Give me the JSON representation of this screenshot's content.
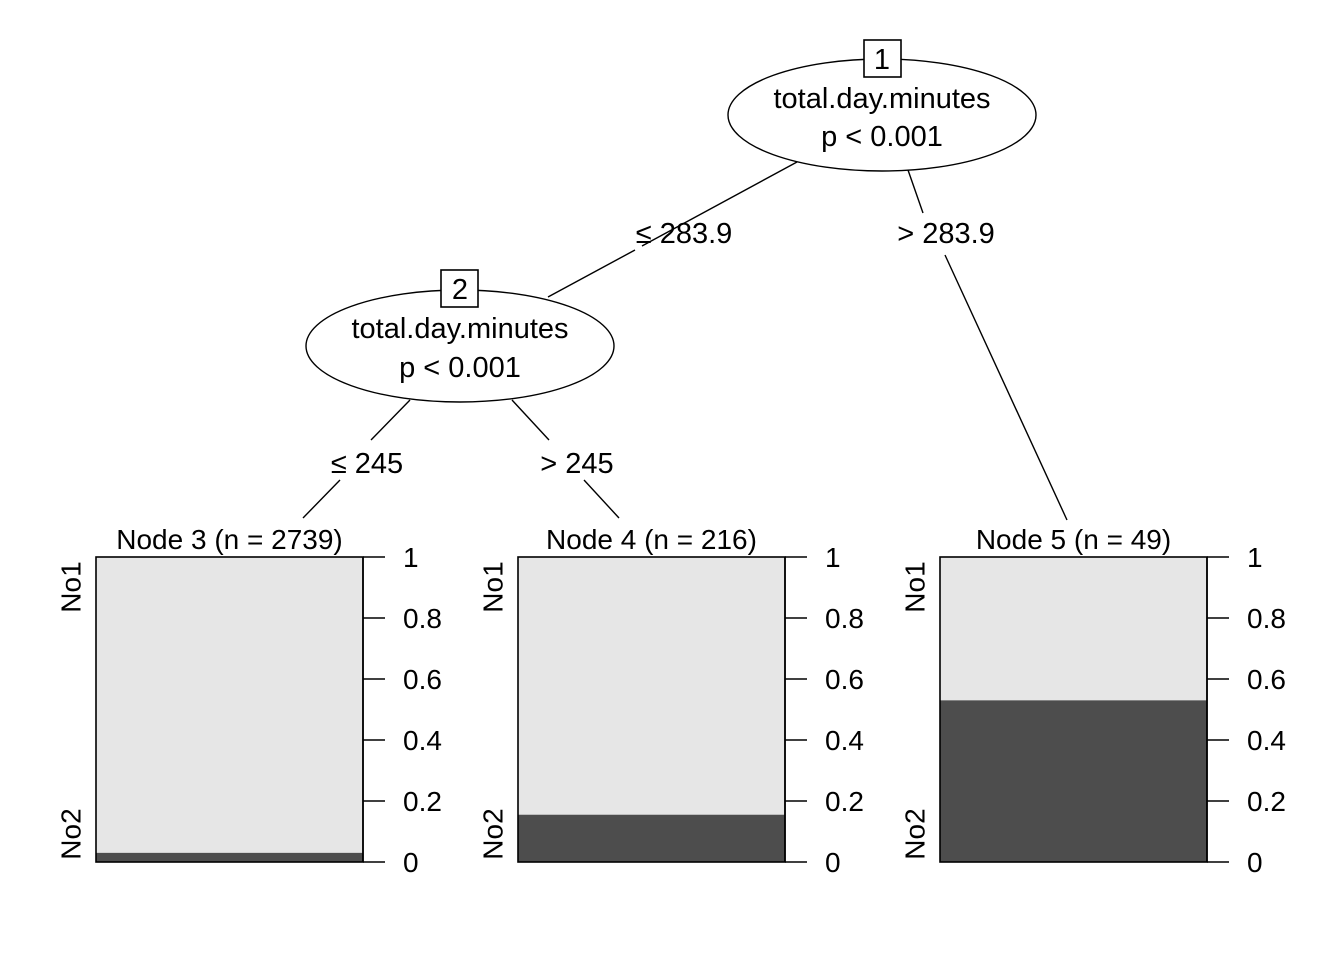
{
  "inner_nodes": [
    {
      "id": "1",
      "variable": "total.day.minutes",
      "pvalue": "p < 0.001"
    },
    {
      "id": "2",
      "variable": "total.day.minutes",
      "pvalue": "p < 0.001"
    }
  ],
  "edges": [
    {
      "from": "1",
      "to": "2",
      "label": "≤ 283.9"
    },
    {
      "from": "1",
      "to": "5",
      "label": "> 283.9"
    },
    {
      "from": "2",
      "to": "3",
      "label": "≤ 245"
    },
    {
      "from": "2",
      "to": "4",
      "label": "> 245"
    }
  ],
  "terminal_nodes": [
    {
      "id": "3",
      "title": "Node 3 (n = 2739)",
      "n": 2739,
      "proportions": {
        "No1": 0.97,
        "No2": 0.03
      }
    },
    {
      "id": "4",
      "title": "Node 4 (n = 216)",
      "n": 216,
      "proportions": {
        "No1": 0.845,
        "No2": 0.155
      }
    },
    {
      "id": "5",
      "title": "Node 5 (n = 49)",
      "n": 49,
      "proportions": {
        "No1": 0.47,
        "No2": 0.53
      }
    }
  ],
  "class_labels": {
    "top": "No1",
    "bottom": "No2"
  },
  "axis_ticks": [
    "0",
    "0.2",
    "0.4",
    "0.6",
    "0.8",
    "1"
  ],
  "colors": {
    "No1": "#e6e6e6",
    "No2": "#4d4d4d",
    "stroke": "#000000"
  }
}
